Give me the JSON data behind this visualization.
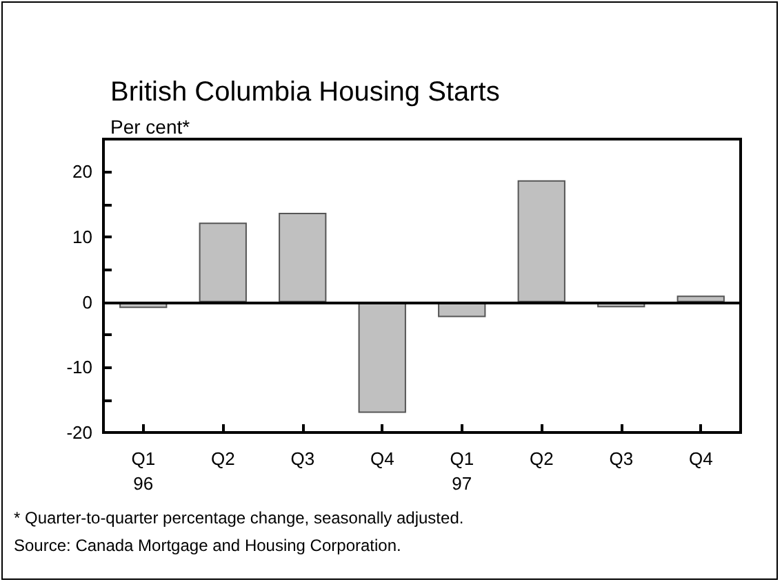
{
  "chart_data": {
    "type": "bar",
    "title": "British Columbia Housing Starts",
    "ylabel": "Per cent*",
    "categories": [
      "Q1\n96",
      "Q2",
      "Q3",
      "Q4",
      "Q1\n97",
      "Q2",
      "Q3",
      "Q4"
    ],
    "values": [
      -0.9,
      12.2,
      13.7,
      -17.0,
      -2.3,
      18.7,
      -0.8,
      1.0
    ],
    "color": "#c0c0c0",
    "ylim": [
      -20,
      25
    ],
    "yticks": [
      -20,
      {
        "value": -15,
        "label": null
      },
      -10,
      {
        "value": -5,
        "label": null
      },
      0,
      {
        "value": 5,
        "label": null
      },
      10,
      {
        "value": 15,
        "label": null
      },
      20
    ],
    "ref_lines": [
      {
        "axis": "y",
        "value": 0,
        "color": "#000000",
        "line_style": "solid"
      }
    ],
    "annotations": [
      "* Quarter-to-quarter percentage change, seasonally adjusted.",
      "Source: Canada Mortgage and Housing Corporation."
    ]
  }
}
